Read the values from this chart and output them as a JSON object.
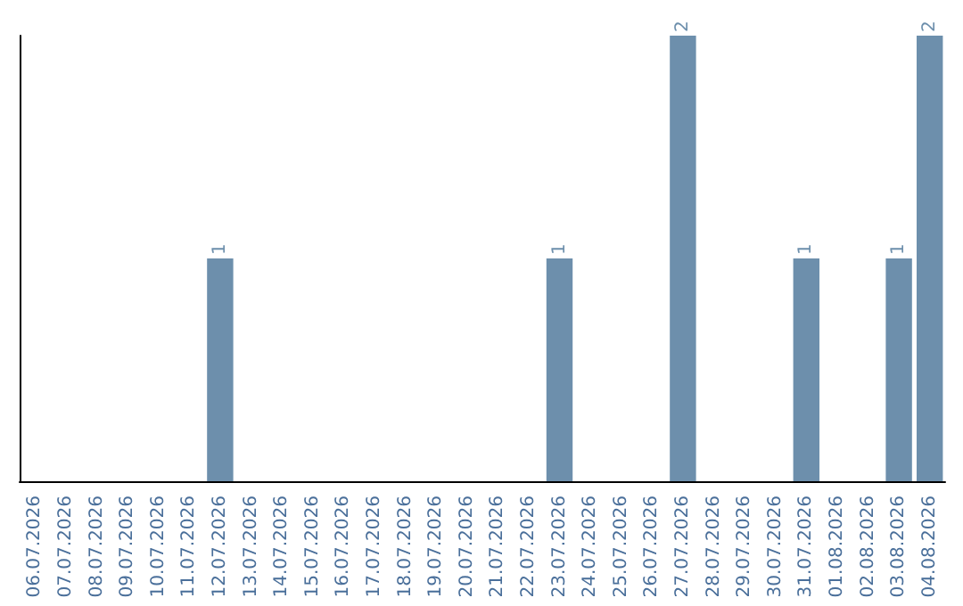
{
  "chart_data": {
    "type": "bar",
    "categories": [
      "06.07.2026",
      "07.07.2026",
      "08.07.2026",
      "09.07.2026",
      "10.07.2026",
      "11.07.2026",
      "12.07.2026",
      "13.07.2026",
      "14.07.2026",
      "15.07.2026",
      "16.07.2026",
      "17.07.2026",
      "18.07.2026",
      "19.07.2026",
      "20.07.2026",
      "21.07.2026",
      "22.07.2026",
      "23.07.2026",
      "24.07.2026",
      "25.07.2026",
      "26.07.2026",
      "27.07.2026",
      "28.07.2026",
      "29.07.2026",
      "30.07.2026",
      "31.07.2026",
      "01.08.2026",
      "02.08.2026",
      "03.08.2026",
      "04.08.2026"
    ],
    "values": [
      0,
      0,
      0,
      0,
      0,
      0,
      1,
      0,
      0,
      0,
      0,
      0,
      0,
      0,
      0,
      0,
      0,
      1,
      0,
      0,
      0,
      2,
      0,
      0,
      0,
      1,
      0,
      0,
      1,
      2
    ],
    "value_labels": [
      null,
      null,
      null,
      null,
      null,
      null,
      "1",
      null,
      null,
      null,
      null,
      null,
      null,
      null,
      null,
      null,
      null,
      "1",
      null,
      null,
      null,
      "2",
      null,
      null,
      null,
      "1",
      null,
      null,
      "1",
      "2"
    ],
    "color": "#6d8fac"
  }
}
